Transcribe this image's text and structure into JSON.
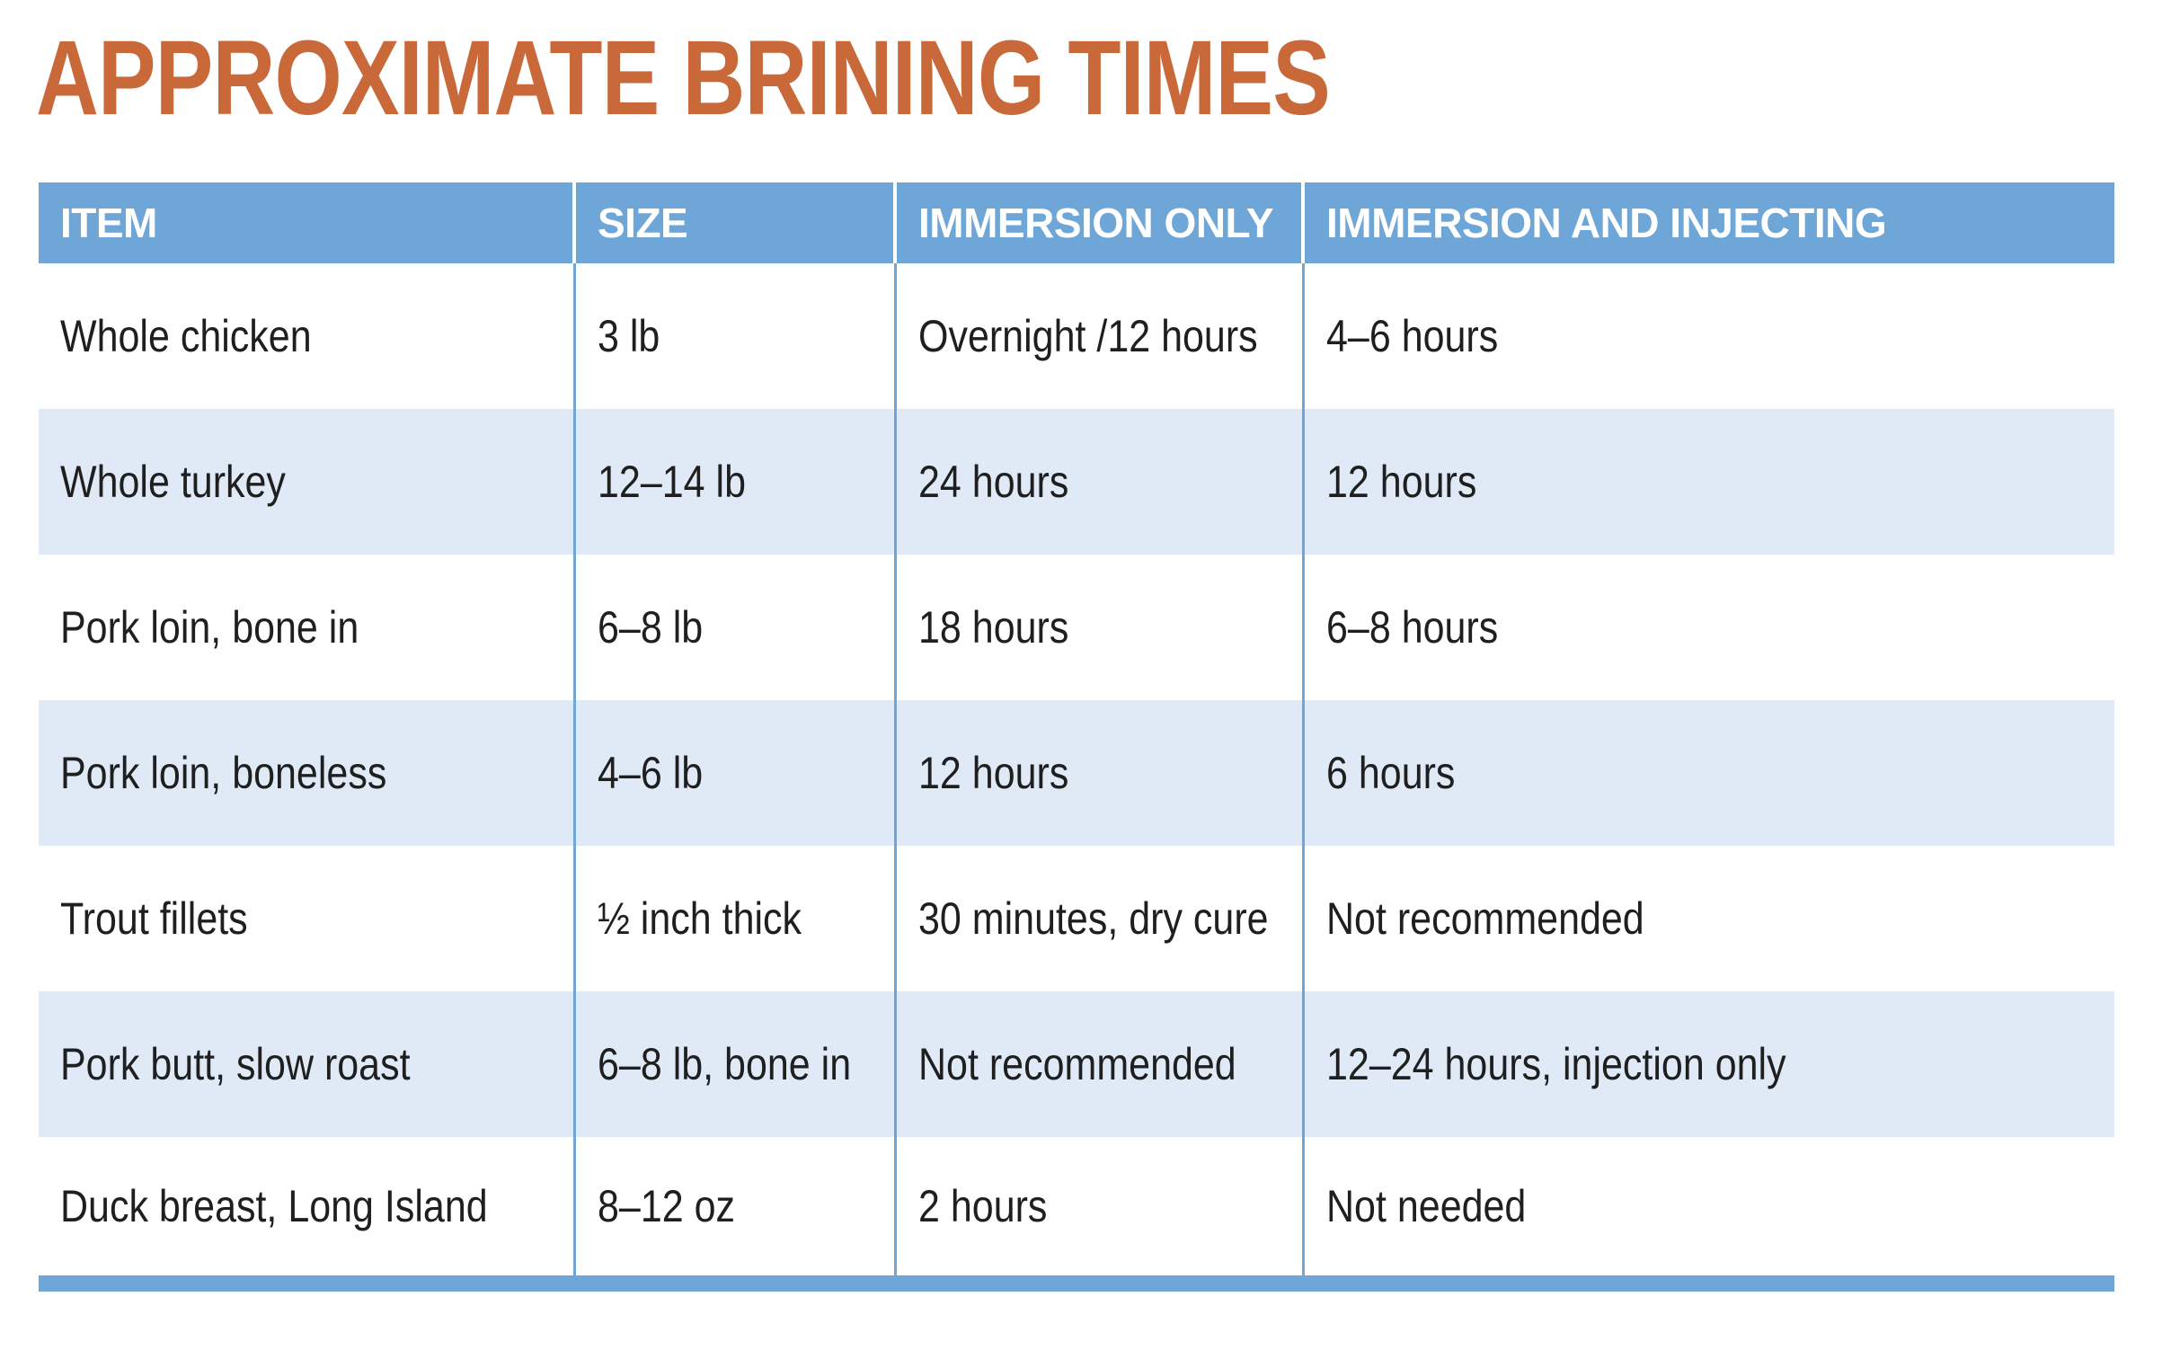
{
  "title": "APPROXIMATE BRINING TIMES",
  "table": {
    "headers": [
      "ITEM",
      "SIZE",
      "IMMERSION ONLY",
      "IMMERSION AND INJECTING"
    ],
    "rows": [
      [
        "Whole chicken",
        "3 lb",
        "Overnight /12 hours",
        "4–6 hours"
      ],
      [
        "Whole turkey",
        "12–14 lb",
        "24 hours",
        "12 hours"
      ],
      [
        "Pork loin, bone in",
        "6–8 lb",
        "18 hours",
        "6–8 hours"
      ],
      [
        "Pork loin, boneless",
        "4–6 lb",
        "12 hours",
        "6 hours"
      ],
      [
        "Trout fillets",
        "½ inch thick",
        "30 minutes, dry cure",
        "Not recommended"
      ],
      [
        "Pork butt, slow roast",
        "6–8 lb, bone in",
        "Not recommended",
        "12–24 hours, injection only"
      ],
      [
        "Duck breast, Long Island",
        "8–12 oz",
        "2 hours",
        "Not needed"
      ]
    ]
  },
  "colors": {
    "title": "#c9693a",
    "header_bg": "#6fa6d8",
    "alt_row_bg": "#e0eaf7"
  }
}
